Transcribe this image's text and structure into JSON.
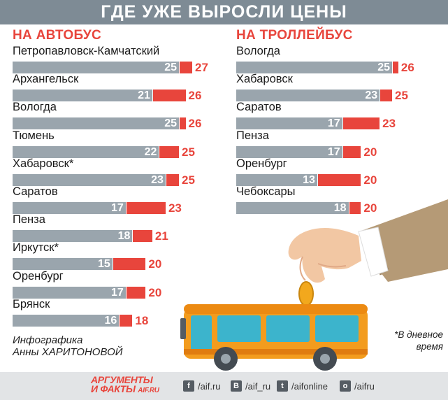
{
  "title": "ГДЕ УЖЕ ВЫРОСЛИ ЦЕНЫ",
  "chart_data": [
    {
      "type": "bar",
      "title": "НА АВТОБУС",
      "categories": [
        "Петропавловск-Камчатский",
        "Архангельск",
        "Вологда",
        "Тюмень",
        "Хабаровск*",
        "Саратов",
        "Пенза",
        "Иркутск*",
        "Оренбург",
        "Брянск"
      ],
      "series": [
        {
          "values": [
            25,
            21,
            25,
            22,
            23,
            17,
            18,
            15,
            17,
            16
          ]
        },
        {
          "values": [
            27,
            26,
            26,
            25,
            25,
            23,
            21,
            20,
            20,
            18
          ]
        }
      ]
    },
    {
      "type": "bar",
      "title": "НА ТРОЛЛЕЙБУС",
      "categories": [
        "Вологда",
        "Хабаровск",
        "Саратов",
        "Пенза",
        "Оренбург",
        "Чебоксары"
      ],
      "series": [
        {
          "values": [
            25,
            23,
            17,
            17,
            13,
            18
          ]
        },
        {
          "values": [
            26,
            25,
            23,
            20,
            20,
            20
          ]
        }
      ]
    }
  ],
  "colors": {
    "old_price": "#9aa5ad",
    "new_price": "#e8453c",
    "banner": "#7e8b95"
  },
  "credit": {
    "line1": "Инфографика",
    "line2": "Анны ХАРИТОНОВОЙ"
  },
  "note": {
    "line1": "*В дневное",
    "line2": "время"
  },
  "footer": {
    "logo_line1": "АРГУМЕНТЫ",
    "logo_line2": "И ФАКТЫ",
    "logo_site": "AIF.RU",
    "social": [
      {
        "icon": "facebook-icon",
        "glyph": "f",
        "label": "/aif.ru"
      },
      {
        "icon": "vk-icon",
        "glyph": "В",
        "label": "/aif_ru"
      },
      {
        "icon": "twitter-icon",
        "glyph": "t",
        "label": "/aifonline"
      },
      {
        "icon": "odnoklassniki-icon",
        "glyph": "о",
        "label": "/aifru"
      }
    ]
  }
}
